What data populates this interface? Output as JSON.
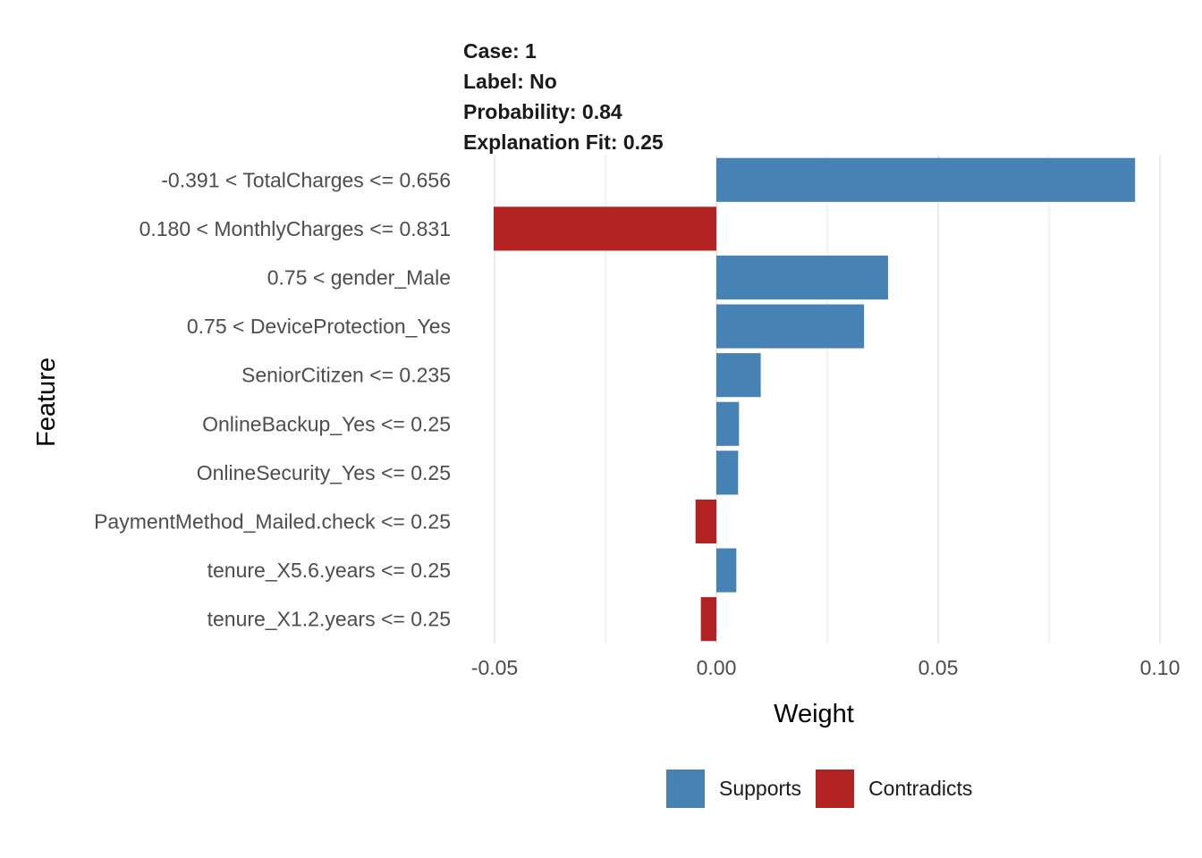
{
  "colors": {
    "supports": "#4682B4",
    "contradicts": "#B22222",
    "grid": "#EBEBEB",
    "text": "#4D4D4D"
  },
  "title": {
    "case": "Case: 1",
    "label": "Label: No",
    "probability": "Probability: 0.84",
    "fit": "Explanation Fit: 0.25"
  },
  "legend": {
    "items": [
      {
        "label": "Supports",
        "key": "supports"
      },
      {
        "label": "Contradicts",
        "key": "contradicts"
      }
    ]
  },
  "chart_data": {
    "type": "bar",
    "orientation": "horizontal",
    "xlabel": "Weight",
    "ylabel": "Feature",
    "xlim": [
      -0.05,
      0.1
    ],
    "xticks": [
      -0.05,
      0.0,
      0.05,
      0.1
    ],
    "xtick_labels": [
      "-0.05",
      "0.00",
      "0.05",
      "0.10"
    ],
    "grid": true,
    "legend_position": "bottom",
    "categories": [
      "-0.391 < TotalCharges <= 0.656",
      "0.180 < MonthlyCharges <= 0.831",
      "0.75 < gender_Male",
      "0.75 < DeviceProtection_Yes",
      "SeniorCitizen <= 0.235",
      "OnlineBackup_Yes <= 0.25",
      "OnlineSecurity_Yes <= 0.25",
      "PaymentMethod_Mailed.check <= 0.25",
      "tenure_X5.6.years <= 0.25",
      "tenure_X1.2.years <= 0.25"
    ],
    "values": [
      0.0944,
      -0.0502,
      0.0387,
      0.0333,
      0.01,
      0.0051,
      0.0049,
      -0.0047,
      0.0045,
      -0.0035
    ],
    "series_type": [
      "Supports",
      "Contradicts",
      "Supports",
      "Supports",
      "Supports",
      "Supports",
      "Supports",
      "Contradicts",
      "Supports",
      "Contradicts"
    ]
  }
}
